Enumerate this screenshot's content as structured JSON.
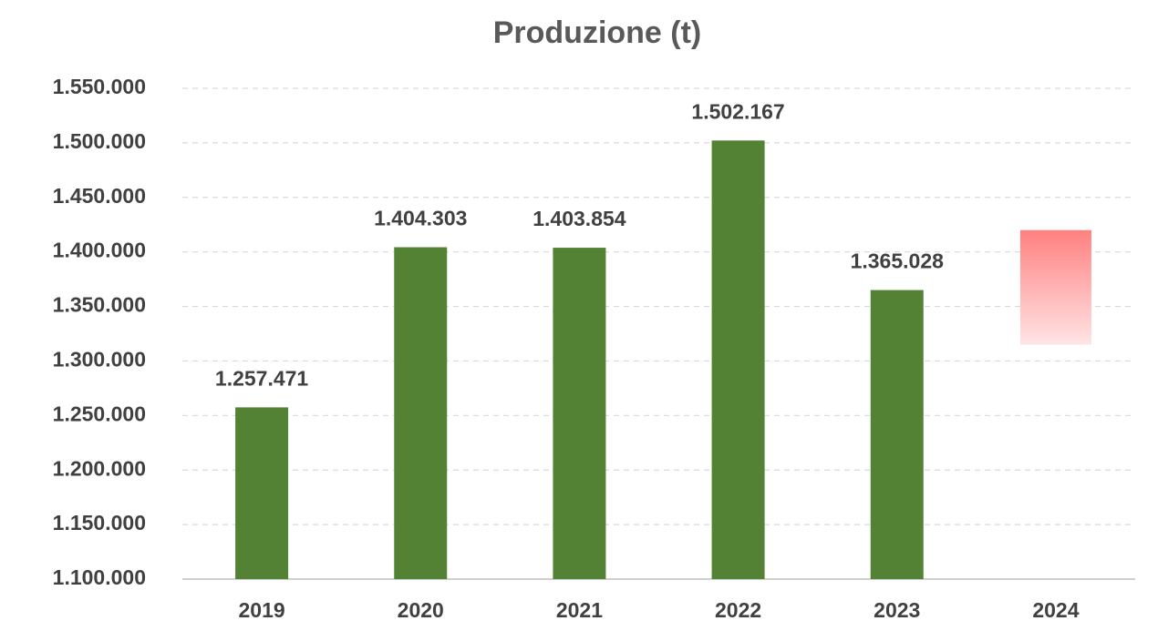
{
  "chart_data": {
    "type": "bar",
    "title": "Produzione (t)",
    "categories": [
      "2019",
      "2020",
      "2021",
      "2022",
      "2023",
      "2024"
    ],
    "values": [
      1257471,
      1404303,
      1403854,
      1502167,
      1365028,
      null
    ],
    "value_labels": [
      "1.257.471",
      "1.404.303",
      "1.403.854",
      "1.502.167",
      "1.365.028",
      null
    ],
    "color": "#548235",
    "forecast_range": {
      "category": "2024",
      "low": 1315000,
      "high": 1420000,
      "color_top": "#ff8080",
      "color_bottom": "#ffe4e4"
    },
    "ylim": [
      1100000,
      1550000
    ],
    "yticks": [
      {
        "value": 1100000,
        "label": "1.100.000"
      },
      {
        "value": 1150000,
        "label": "1.150.000"
      },
      {
        "value": 1200000,
        "label": "1.200.000"
      },
      {
        "value": 1250000,
        "label": "1.250.000"
      },
      {
        "value": 1300000,
        "label": "1.300.000"
      },
      {
        "value": 1350000,
        "label": "1.350.000"
      },
      {
        "value": 1400000,
        "label": "1.400.000"
      },
      {
        "value": 1450000,
        "label": "1.450.000"
      },
      {
        "value": 1500000,
        "label": "1.500.000"
      },
      {
        "value": 1550000,
        "label": "1.550.000"
      }
    ],
    "grid": true
  }
}
